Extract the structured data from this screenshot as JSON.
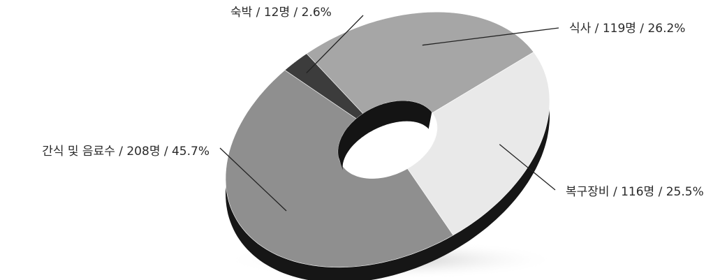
{
  "chart_data": {
    "type": "pie",
    "style": "3d-donut",
    "categories": [
      "식사",
      "복구장비",
      "간식 및 음료수",
      "숙박"
    ],
    "counts": [
      119,
      116,
      208,
      12
    ],
    "values": [
      26.2,
      25.5,
      45.7,
      2.6
    ],
    "labels": [
      "식사 / 119명 / 26.2%",
      "복구장비 / 116명 / 25.5%",
      "간식 및 음료수 / 208명 / 45.7%",
      "숙박 / 12명 / 2.6%"
    ],
    "colors": [
      "#a6a6a6",
      "#e9e9e9",
      "#8f8f8f",
      "#3c3c3c"
    ],
    "side_color": "#161616",
    "legend": "none"
  }
}
